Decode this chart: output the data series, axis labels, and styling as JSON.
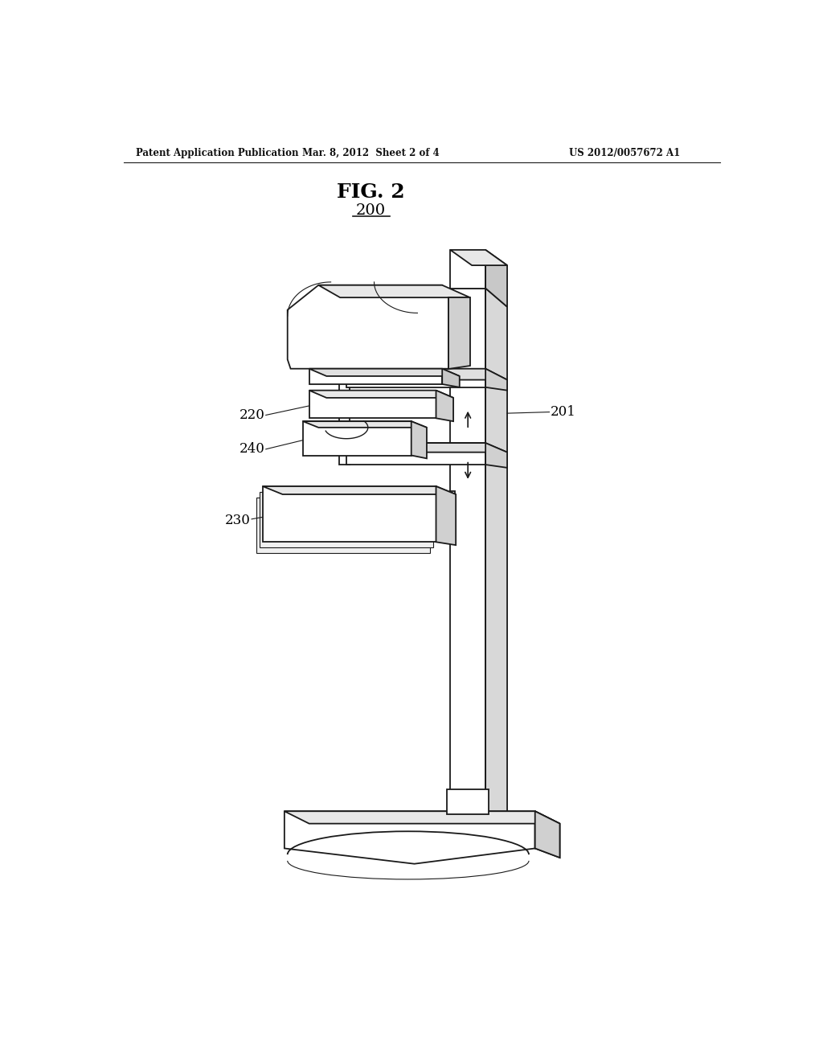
{
  "title": "FIG. 2",
  "ref_num": "200",
  "patent_header_left": "Patent Application Publication",
  "patent_header_mid": "Mar. 8, 2012  Sheet 2 of 4",
  "patent_header_right": "US 2012/0057672 A1",
  "bg_color": "#ffffff",
  "line_color": "#1a1a1a",
  "line_width": 1.3,
  "thin_line": 0.8
}
